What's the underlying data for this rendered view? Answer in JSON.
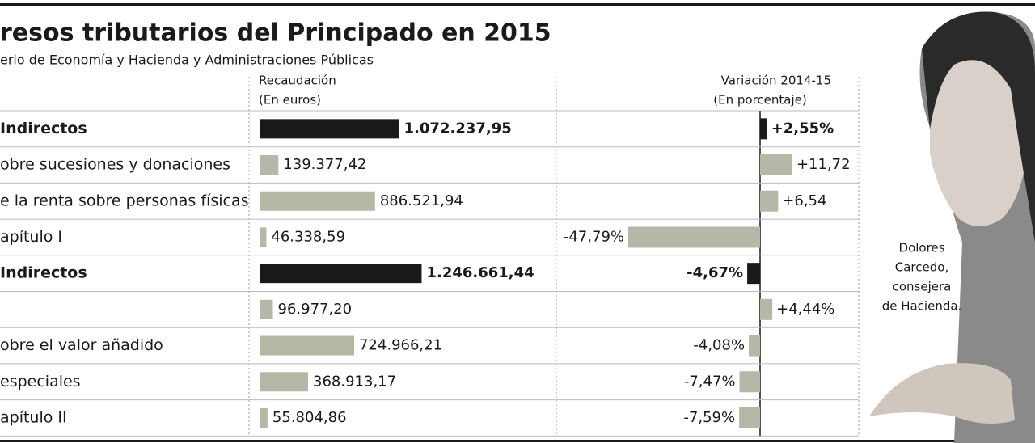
{
  "title": "resos tributarios del Principado en 2015",
  "subtitle": "erio de Economía y Hacienda y Administraciones Públicas",
  "columns": {
    "collection": "Recaudación",
    "collection_unit": "(En euros)",
    "change": "Variación 2014-15",
    "change_unit": "(En porcentaje)"
  },
  "rows": [
    {
      "label": "Indirectos",
      "bold": true,
      "color": "#1a1a1a",
      "value": 1072237.95,
      "value_label": "1.072.237,95",
      "change": 2.55,
      "change_label": "+2,55%"
    },
    {
      "label": "obre sucesiones y donaciones",
      "bold": false,
      "color": "#b7b7a8",
      "value": 139377.42,
      "value_label": "139.377,42",
      "change": 11.72,
      "change_label": "+11,72"
    },
    {
      "label": "e la renta sobre personas físicas",
      "bold": false,
      "color": "#b7b7a8",
      "value": 886521.94,
      "value_label": "886.521,94",
      "change": 6.54,
      "change_label": "+6,54"
    },
    {
      "label": "apítulo I",
      "bold": false,
      "color": "#b7b7a8",
      "value": 46338.59,
      "value_label": "46.338,59",
      "change": -47.79,
      "change_label": "-47,79%"
    },
    {
      "label": "Indirectos",
      "bold": true,
      "color": "#1a1a1a",
      "value": 1246661.44,
      "value_label": "1.246.661,44",
      "change": -4.67,
      "change_label": "-4,67%"
    },
    {
      "label": null,
      "bold": false,
      "color": "#b7b7a8",
      "value": 96977.2,
      "value_label": "96.977,20",
      "change": 4.44,
      "change_label": "+4,44%"
    },
    {
      "label": "obre el valor añadido",
      "bold": false,
      "color": "#b7b7a8",
      "value": 724966.21,
      "value_label": "724.966,21",
      "change": -4.08,
      "change_label": "-4,08%"
    },
    {
      "label": "especiales",
      "bold": false,
      "color": "#b7b7a8",
      "value": 368913.17,
      "value_label": "368.913,17",
      "change": -7.47,
      "change_label": "-7,47%"
    },
    {
      "label": "apítulo II",
      "bold": false,
      "color": "#b7b7a8",
      "value": 55804.86,
      "value_label": "55.804,86",
      "change": -7.59,
      "change_label": "-7,59%"
    }
  ],
  "caption": [
    "Dolores",
    "Carcedo,",
    "consejera",
    "de Hacienda."
  ]
}
